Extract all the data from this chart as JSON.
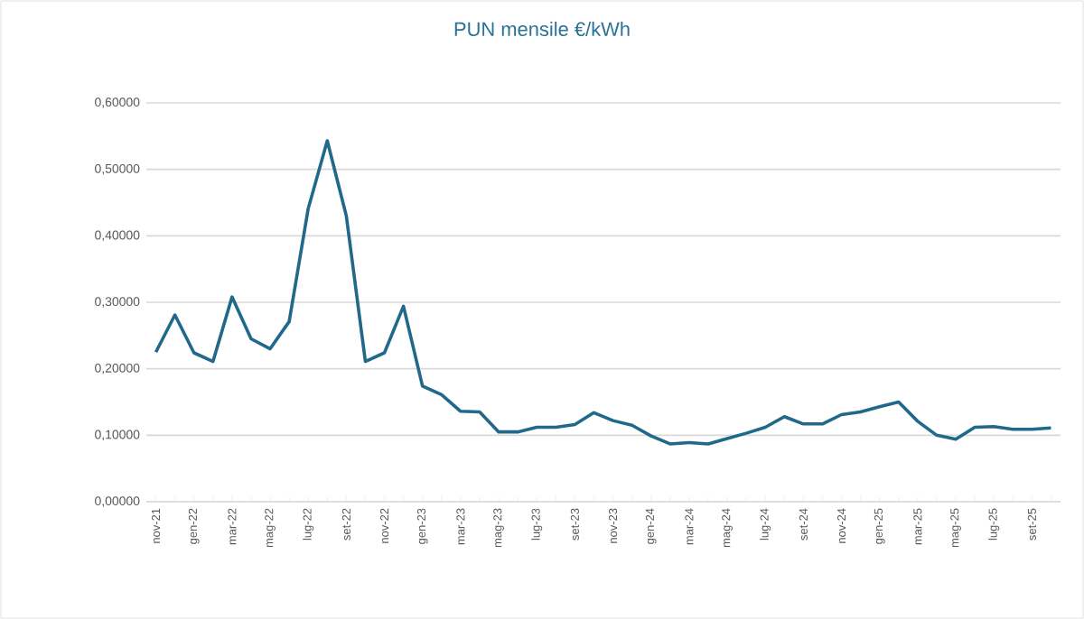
{
  "chart_data": {
    "type": "line",
    "title": "PUN mensile €/kWh",
    "categories": [
      "nov-21",
      null,
      "gen-22",
      null,
      "mar-22",
      null,
      "mag-22",
      null,
      "lug-22",
      null,
      "set-22",
      null,
      "nov-22",
      null,
      "gen-23",
      null,
      "mar-23",
      null,
      "mag-23",
      null,
      "lug-23",
      null,
      "set-23",
      null,
      "nov-23",
      null,
      "gen-24",
      null,
      "mar-24",
      null,
      "mag-24",
      null,
      "lug-24",
      null,
      "set-24",
      null,
      "nov-24",
      null,
      "gen-25",
      null,
      "mar-25",
      null,
      "mag-25",
      null,
      "lug-25",
      null,
      "set-25",
      null
    ],
    "series": [
      {
        "color": "#21698a",
        "values": [
          0.225,
          0.281,
          0.224,
          0.211,
          0.308,
          0.245,
          0.23,
          0.271,
          0.441,
          0.543,
          0.43,
          0.211,
          0.224,
          0.294,
          0.174,
          0.161,
          0.136,
          0.135,
          0.105,
          0.105,
          0.112,
          0.112,
          0.116,
          0.134,
          0.122,
          0.115,
          0.099,
          0.087,
          0.089,
          0.087,
          0.095,
          0.103,
          0.112,
          0.128,
          0.117,
          0.117,
          0.131,
          0.135,
          0.143,
          0.15,
          0.121,
          0.1,
          0.094,
          0.112,
          0.113,
          0.109,
          0.109,
          0.111
        ]
      }
    ],
    "ylim": [
      0,
      0.6
    ],
    "yticks": [
      {
        "value": 0,
        "label": "0,00000"
      },
      {
        "value": 0.1,
        "label": "0,10000"
      },
      {
        "value": 0.2,
        "label": "0,20000"
      },
      {
        "value": 0.3,
        "label": "0,30000"
      },
      {
        "value": 0.4,
        "label": "0,40000"
      },
      {
        "value": 0.5,
        "label": "0,50000"
      },
      {
        "value": 0.6,
        "label": "0,60000"
      }
    ],
    "grid": "y",
    "marker": "none",
    "line_style": "solid"
  }
}
